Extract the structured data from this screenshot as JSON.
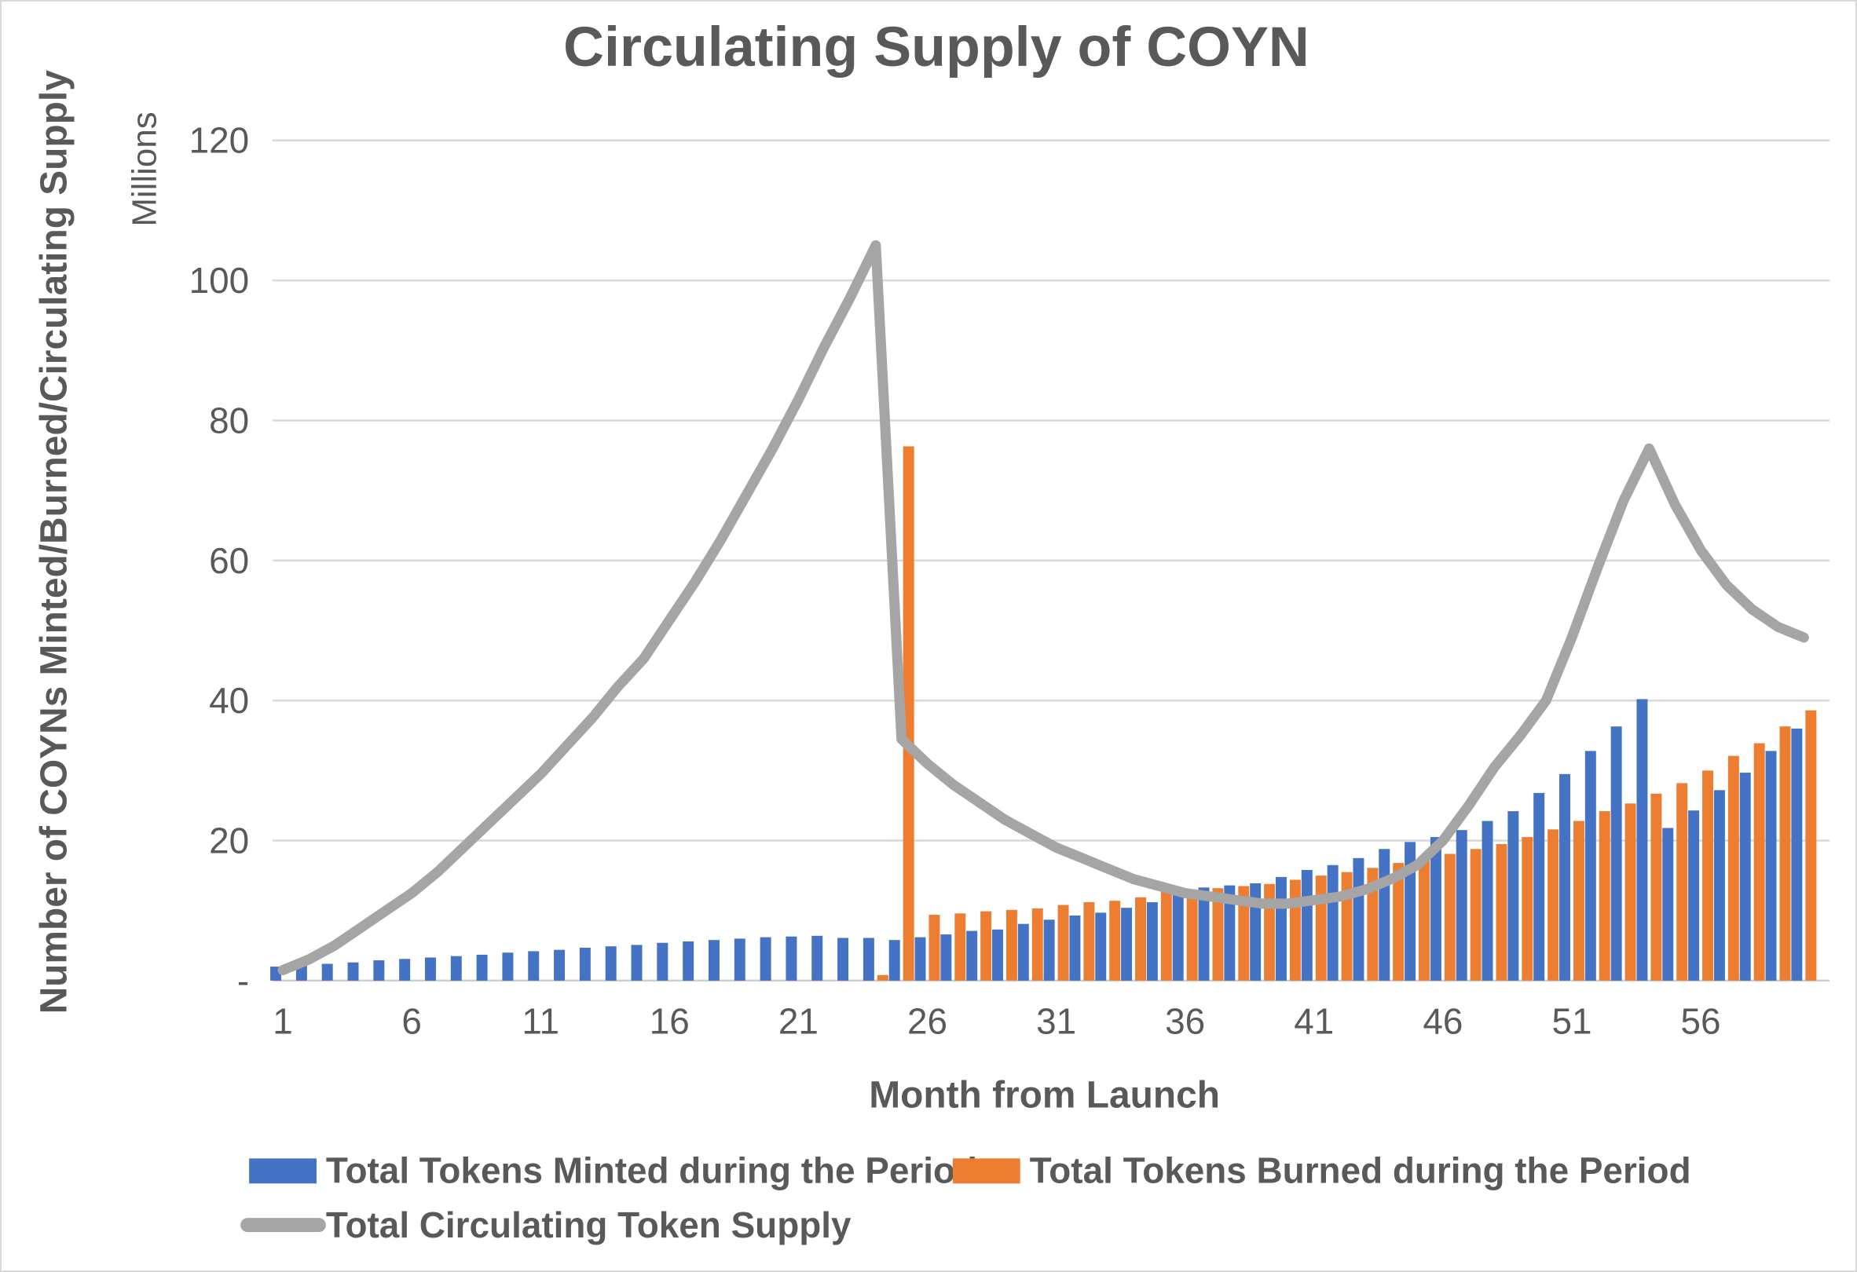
{
  "chart": {
    "title": "Circulating Supply of COYN",
    "y_axis_title": "Number of COYNs Minted/Burned/Circulating Supply",
    "y_units_label": "Millions",
    "x_axis_title": "Month from Launch",
    "legend": {
      "minted_label": "Total Tokens Minted during the Period",
      "burned_label": "Total Tokens Burned during the Period",
      "supply_label": "Total Circulating Token Supply"
    },
    "colors": {
      "minted": "#4472C4",
      "burned": "#ED7D31",
      "supply": "#A5A5A5",
      "gridline": "#D9D9D9",
      "axis_line": "#CFCFCF",
      "text": "#595959"
    }
  },
  "chart_data": {
    "type": "bar+line",
    "title": "Circulating Supply of COYN",
    "xlabel": "Month from Launch",
    "ylabel": "Number of COYNs Minted/Burned/Circulating Supply",
    "y_units": "Millions",
    "ylim": [
      0,
      120
    ],
    "grid": "horizontal",
    "legend_position": "bottom",
    "x_tick_labels": [
      1,
      6,
      11,
      16,
      21,
      26,
      31,
      36,
      41,
      46,
      51,
      56
    ],
    "y_tick_values": [
      0,
      20,
      40,
      60,
      80,
      100,
      120
    ],
    "y_tick_labels": [
      "-",
      "20",
      "40",
      "60",
      "80",
      "100",
      "120"
    ],
    "months": [
      1,
      2,
      3,
      4,
      5,
      6,
      7,
      8,
      9,
      10,
      11,
      12,
      13,
      14,
      15,
      16,
      17,
      18,
      19,
      20,
      21,
      22,
      23,
      24,
      25,
      26,
      27,
      28,
      29,
      30,
      31,
      32,
      33,
      34,
      35,
      36,
      37,
      38,
      39,
      40,
      41,
      42,
      43,
      44,
      45,
      46,
      47,
      48,
      49,
      50,
      51,
      52,
      53,
      54,
      55,
      56,
      57,
      58,
      59,
      60
    ],
    "series": [
      {
        "name": "Total Tokens Minted during the Period",
        "kind": "bar",
        "color": "#4472C4",
        "values": [
          2.0,
          2.2,
          2.4,
          2.6,
          2.9,
          3.1,
          3.3,
          3.5,
          3.7,
          4.0,
          4.2,
          4.4,
          4.7,
          4.9,
          5.1,
          5.4,
          5.6,
          5.8,
          6.0,
          6.2,
          6.3,
          6.4,
          6.1,
          6.1,
          5.8,
          6.2,
          6.6,
          7.1,
          7.3,
          8.1,
          8.7,
          9.3,
          9.7,
          10.4,
          11.2,
          12.4,
          13.3,
          13.6,
          13.9,
          14.8,
          15.8,
          16.5,
          17.5,
          18.8,
          19.8,
          20.5,
          21.5,
          22.8,
          24.2,
          26.8,
          29.5,
          32.8,
          36.3,
          40.2,
          21.8,
          24.3,
          27.2,
          29.7,
          32.8,
          36.0
        ]
      },
      {
        "name": "Total Tokens Burned during the Period",
        "kind": "bar",
        "color": "#ED7D31",
        "values": [
          0,
          0,
          0,
          0,
          0,
          0,
          0,
          0,
          0,
          0,
          0,
          0,
          0,
          0,
          0,
          0,
          0,
          0,
          0,
          0,
          0,
          0,
          0,
          0.8,
          76.3,
          9.4,
          9.6,
          9.9,
          10.1,
          10.3,
          10.8,
          11.2,
          11.4,
          11.9,
          12.7,
          12.9,
          13.2,
          13.5,
          13.8,
          14.4,
          15.0,
          15.5,
          16.1,
          16.8,
          17.4,
          18.1,
          18.8,
          19.5,
          20.5,
          21.6,
          22.8,
          24.2,
          25.3,
          26.7,
          28.2,
          30.0,
          32.1,
          33.9,
          36.3,
          38.6
        ]
      },
      {
        "name": "Total Circulating Token Supply",
        "kind": "line",
        "color": "#A5A5A5",
        "values": [
          1.5,
          3,
          5,
          7.5,
          10,
          12.5,
          15.5,
          19,
          22.5,
          26,
          29.5,
          33.5,
          37.5,
          42,
          46,
          51.5,
          57,
          63,
          69.5,
          76,
          83,
          90.5,
          97.5,
          105,
          34.5,
          31,
          28,
          25.5,
          23,
          21,
          19,
          17.5,
          16,
          14.5,
          13.5,
          12.5,
          12,
          11.5,
          11,
          11,
          11.5,
          12,
          13,
          14.5,
          16.5,
          20,
          25,
          30.5,
          35,
          40,
          49,
          59,
          68.5,
          76,
          68,
          61.5,
          56.5,
          53,
          50.5,
          49
        ]
      }
    ]
  }
}
